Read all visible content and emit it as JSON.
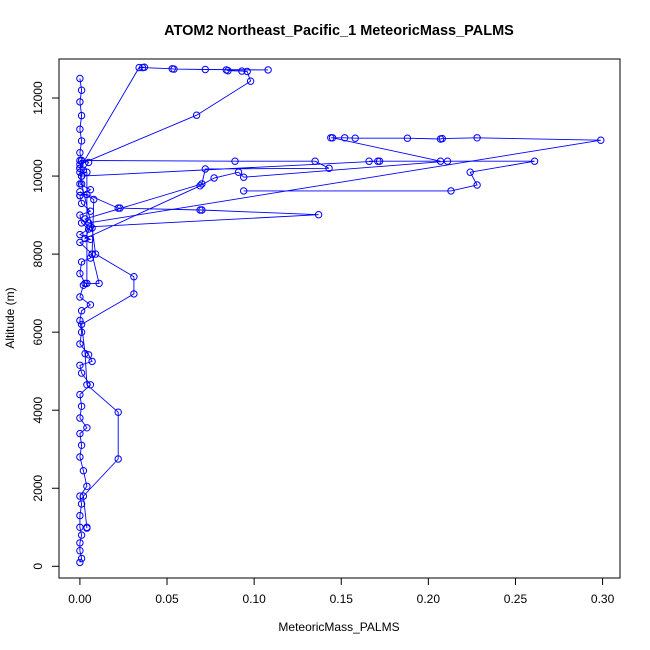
{
  "chart_data": {
    "type": "line",
    "title": "ATOM2 Northeast_Pacific_1 MeteoricMass_PALMS",
    "xlabel": "MeteoricMass_PALMS",
    "ylabel": "Altitude (m)",
    "xlim": [
      -0.012,
      0.31
    ],
    "ylim": [
      -300,
      13000
    ],
    "x_ticks": [
      0.0,
      0.05,
      0.1,
      0.15,
      0.2,
      0.25,
      0.3
    ],
    "x_tick_labels": [
      "0.00",
      "0.05",
      "0.10",
      "0.15",
      "0.20",
      "0.25",
      "0.30"
    ],
    "y_ticks": [
      0,
      2000,
      4000,
      6000,
      8000,
      10000,
      12000
    ],
    "y_tick_labels": [
      "0",
      "2000",
      "4000",
      "6000",
      "8000",
      "10000",
      "12000"
    ],
    "grid": false,
    "legend": "none",
    "series": [
      {
        "color": "#0000ff",
        "marker": "open-circle",
        "points": [
          [
            0.0,
            100
          ],
          [
            0.001,
            200
          ],
          [
            0.0,
            400
          ],
          [
            0.0,
            600
          ],
          [
            0.001,
            800
          ],
          [
            0.0,
            1000
          ],
          [
            0.0,
            1300
          ],
          [
            0.001,
            1600
          ],
          [
            0.0,
            1800
          ],
          [
            0.004,
            2050
          ],
          [
            0.002,
            2450
          ],
          [
            0.0,
            2800
          ],
          [
            0.001,
            3100
          ],
          [
            0.0,
            3400
          ],
          [
            0.004,
            3550
          ],
          [
            0.0,
            3800
          ],
          [
            0.001,
            4100
          ],
          [
            0.0,
            4400
          ],
          [
            0.006,
            4650
          ],
          [
            0.001,
            4950
          ],
          [
            0.0,
            5150
          ],
          [
            0.007,
            5250
          ],
          [
            0.005,
            5420
          ],
          [
            0.0,
            5700
          ],
          [
            0.001,
            6000
          ],
          [
            0.0,
            6300
          ],
          [
            0.001,
            6550
          ],
          [
            0.006,
            6700
          ],
          [
            0.0,
            6900
          ],
          [
            0.002,
            7200
          ],
          [
            0.003,
            7250
          ],
          [
            0.0,
            7500
          ],
          [
            0.001,
            7800
          ],
          [
            0.006,
            7900
          ],
          [
            0.007,
            8000
          ],
          [
            0.0,
            8300
          ],
          [
            0.006,
            8380
          ],
          [
            0.0,
            8500
          ],
          [
            0.005,
            8640
          ],
          [
            0.001,
            8800
          ],
          [
            0.0,
            9000
          ],
          [
            0.006,
            9100
          ],
          [
            0.001,
            9300
          ],
          [
            0.0,
            9500
          ],
          [
            0.006,
            9650
          ],
          [
            0.0,
            9800
          ],
          [
            0.001,
            10000
          ],
          [
            0.0,
            10200
          ],
          [
            0.001,
            10400
          ],
          [
            0.0,
            10600
          ],
          [
            0.001,
            10900
          ],
          [
            0.0,
            11200
          ],
          [
            0.001,
            11550
          ],
          [
            0.0,
            11900
          ],
          [
            0.001,
            12200
          ],
          [
            0.0,
            12500
          ]
        ]
      },
      {
        "color": "#0000ff",
        "marker": "open-circle",
        "points": [
          [
            0.004,
            1000
          ],
          [
            0.004,
            980
          ],
          [
            0.002,
            1800
          ],
          [
            0.022,
            2750
          ],
          [
            0.022,
            3950
          ],
          [
            0.004,
            4650
          ],
          [
            0.003,
            5450
          ],
          [
            0.001,
            6200
          ],
          [
            0.031,
            6980
          ],
          [
            0.031,
            7420
          ],
          [
            0.009,
            8000
          ],
          [
            0.007,
            8670
          ],
          [
            0.001,
            9800
          ],
          [
            0.0,
            10100
          ],
          [
            0.004,
            10100
          ],
          [
            0.004,
            7250
          ],
          [
            0.011,
            7250
          ],
          [
            0.007,
            8000
          ],
          [
            0.008,
            9400
          ],
          [
            0.0,
            9600
          ]
        ]
      },
      {
        "color": "#0000ff",
        "marker": "open-circle",
        "points": [
          [
            0.0,
            9500
          ],
          [
            0.004,
            9530
          ],
          [
            0.022,
            9180
          ],
          [
            0.023,
            9180
          ],
          [
            0.069,
            9130
          ],
          [
            0.07,
            9130
          ],
          [
            0.137,
            9010
          ],
          [
            0.006,
            8700
          ],
          [
            0.003,
            8400
          ],
          [
            0.069,
            9750
          ],
          [
            0.077,
            9950
          ],
          [
            0.091,
            10100
          ],
          [
            0.094,
            9970
          ],
          [
            0.211,
            10380
          ],
          [
            0.261,
            10380
          ],
          [
            0.224,
            10100
          ],
          [
            0.228,
            9770
          ],
          [
            0.213,
            9620
          ],
          [
            0.094,
            9620
          ]
        ]
      },
      {
        "color": "#0000ff",
        "marker": "open-circle",
        "points": [
          [
            0.0,
            10400
          ],
          [
            0.089,
            10380
          ],
          [
            0.135,
            10380
          ],
          [
            0.143,
            10200
          ],
          [
            0.072,
            10180
          ],
          [
            0.07,
            9800
          ],
          [
            0.003,
            8900
          ],
          [
            0.005,
            8800
          ],
          [
            0.299,
            10920
          ],
          [
            0.228,
            10980
          ],
          [
            0.208,
            10960
          ],
          [
            0.207,
            10950
          ],
          [
            0.188,
            10970
          ],
          [
            0.158,
            10970
          ],
          [
            0.152,
            10980
          ],
          [
            0.144,
            10980
          ],
          [
            0.145,
            10980
          ],
          [
            0.207,
            10380
          ],
          [
            0.172,
            10380
          ],
          [
            0.166,
            10380
          ],
          [
            0.171,
            10380
          ],
          [
            0.001,
            10000
          ]
        ]
      },
      {
        "color": "#0000ff",
        "marker": "open-circle",
        "points": [
          [
            0.0,
            10300
          ],
          [
            0.067,
            11560
          ],
          [
            0.098,
            12430
          ],
          [
            0.096,
            12680
          ],
          [
            0.093,
            12690
          ],
          [
            0.085,
            12700
          ],
          [
            0.084,
            12720
          ],
          [
            0.108,
            12720
          ],
          [
            0.072,
            12730
          ],
          [
            0.054,
            12740
          ],
          [
            0.053,
            12750
          ],
          [
            0.036,
            12780
          ],
          [
            0.037,
            12790
          ],
          [
            0.034,
            12780
          ],
          [
            0.0,
            10200
          ],
          [
            0.001,
            10400
          ],
          [
            0.005,
            10350
          ],
          [
            0.002,
            10150
          ]
        ]
      }
    ]
  }
}
